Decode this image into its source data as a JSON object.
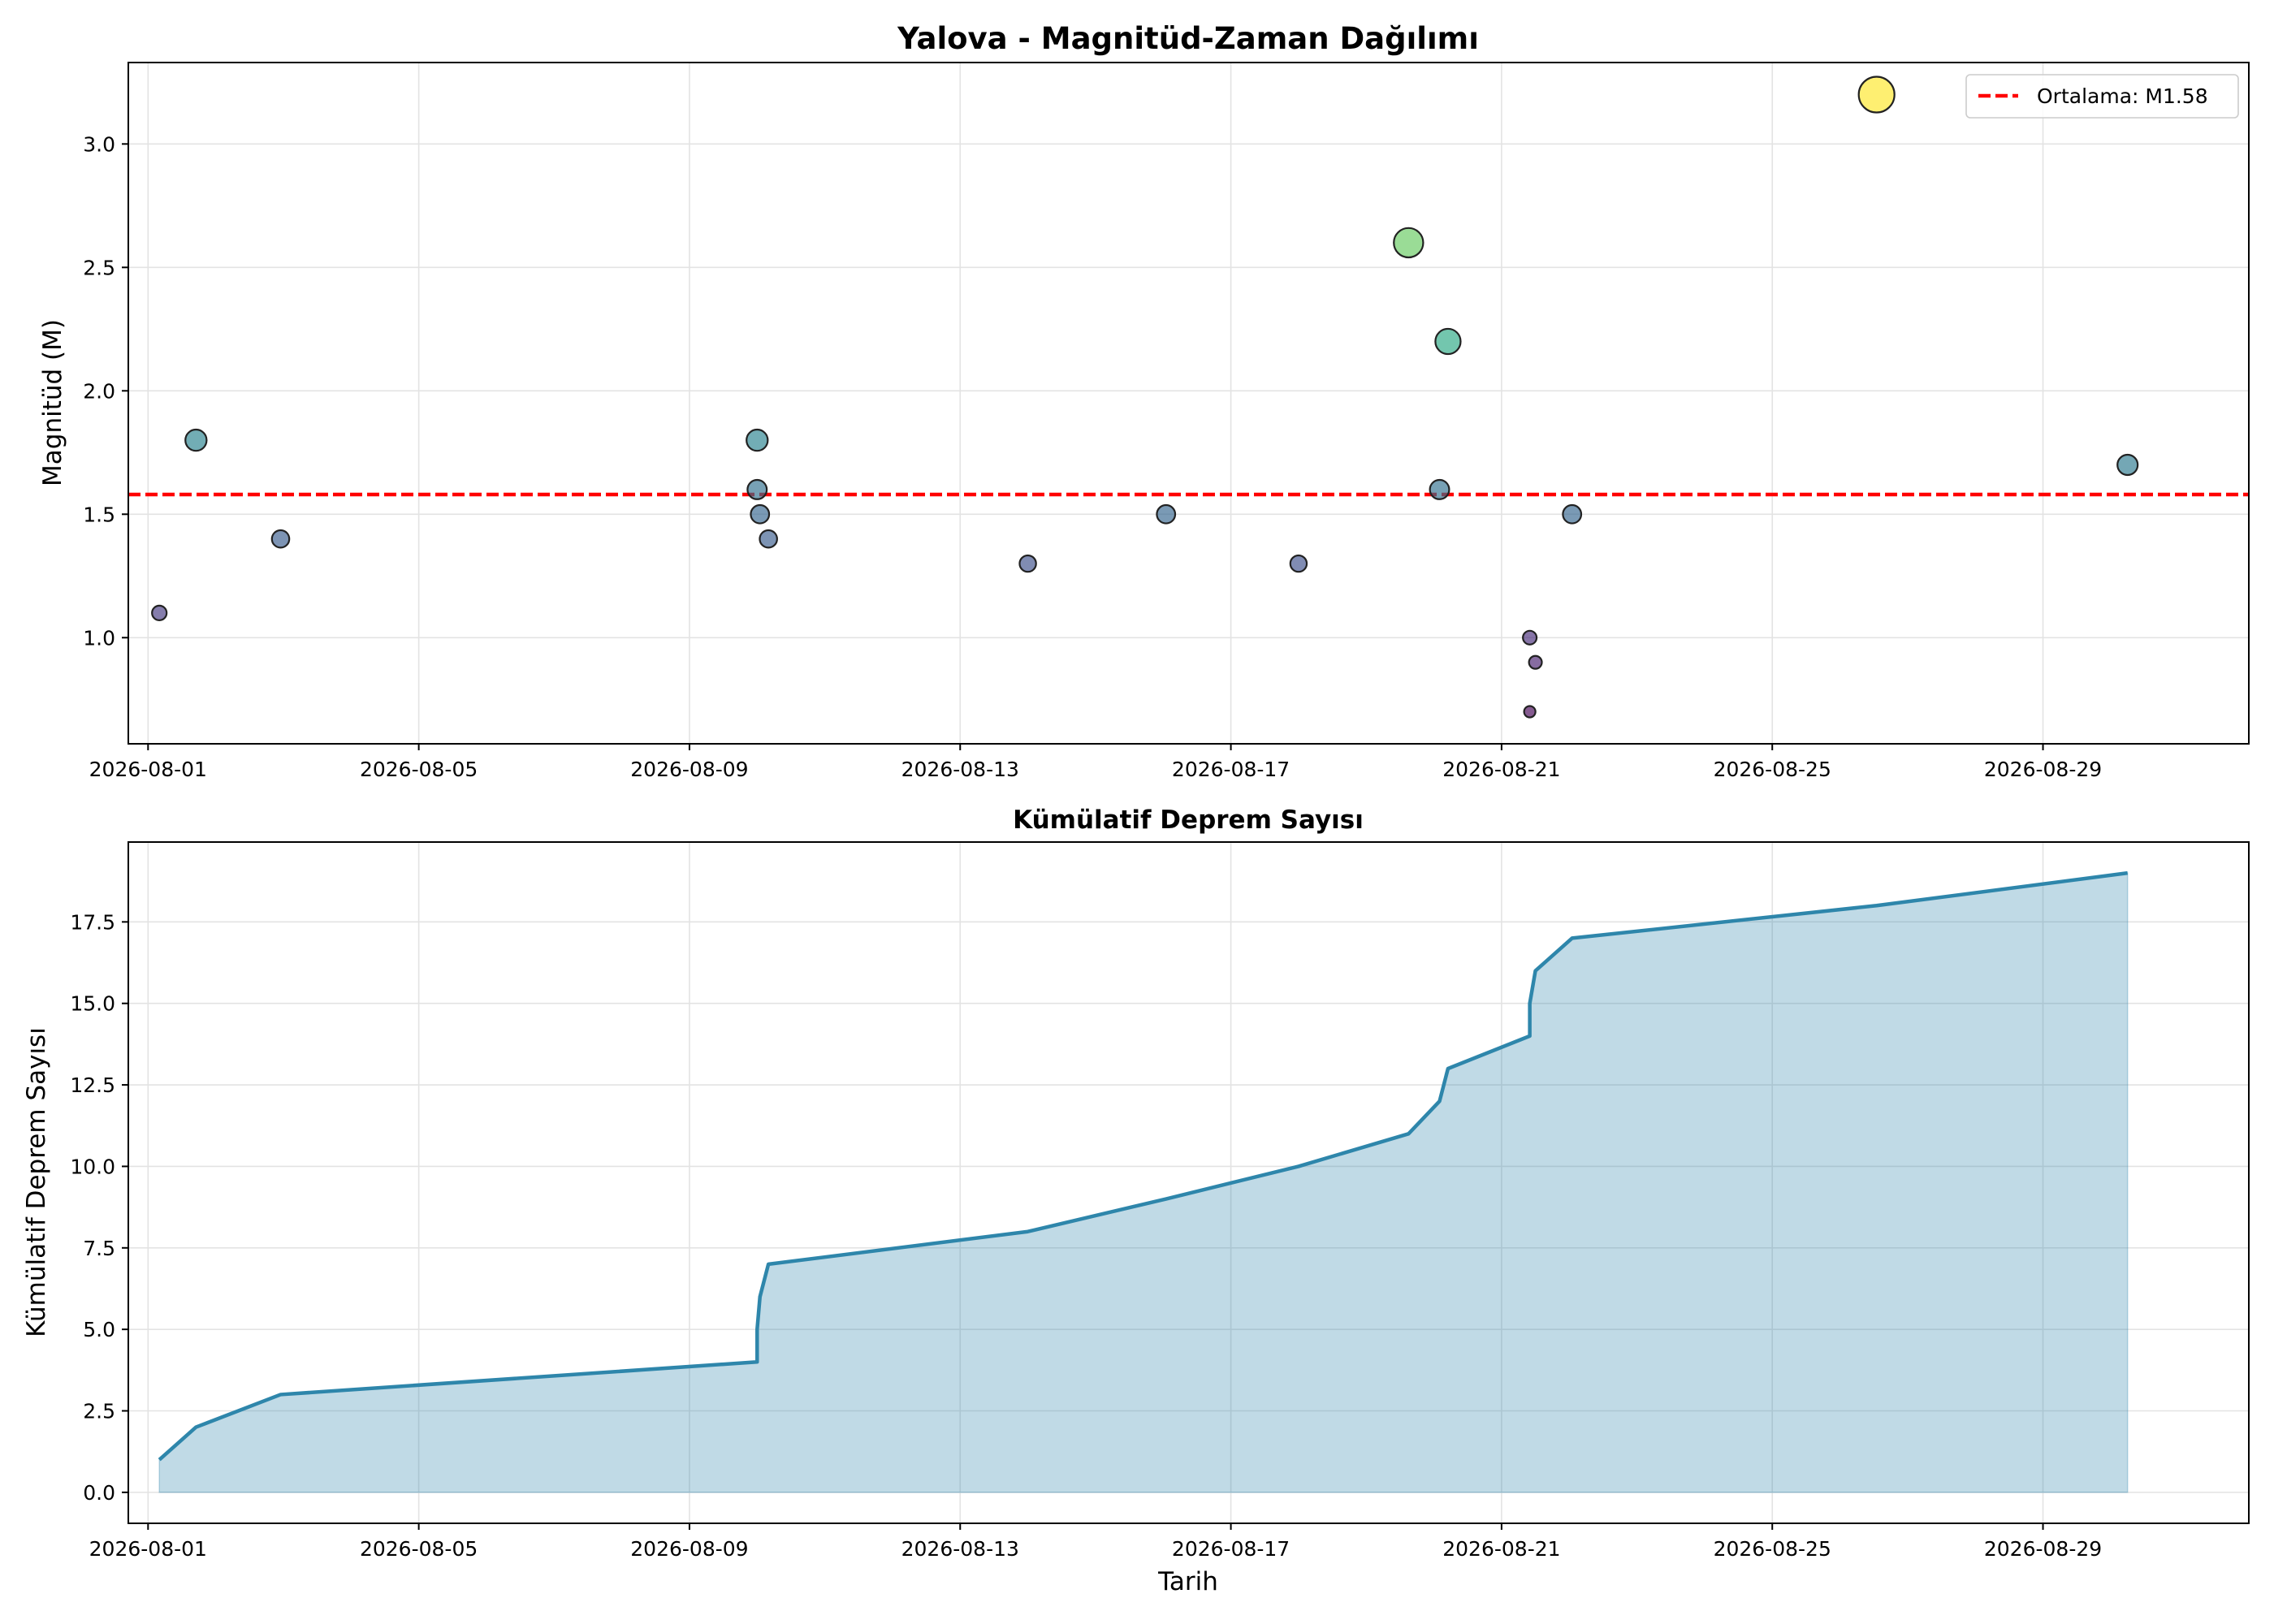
{
  "chart_data": [
    {
      "type": "scatter",
      "title": "Yalova - Magnitüd-Zaman Dağılımı",
      "xlabel": "",
      "ylabel": "Magnitüd (M)",
      "x_ticks": [
        "2026-08-01",
        "2026-08-05",
        "2026-08-09",
        "2026-08-13",
        "2026-08-17",
        "2026-08-21",
        "2026-08-25",
        "2026-08-29"
      ],
      "y_ticks": [
        "1.0",
        "1.5",
        "2.0",
        "2.5",
        "3.0"
      ],
      "xlim": [
        "2026-07-31 17:00",
        "2026-09-01 01:00"
      ],
      "ylim": [
        0.57,
        3.33
      ],
      "grid": true,
      "legend": {
        "position": "upper-right",
        "entries": [
          "Ortalama: M1.58"
        ]
      },
      "mean_line": {
        "label": "Ortalama: M1.58",
        "value": 1.58,
        "color": "#ff0000"
      },
      "colormap": "viridis",
      "points": [
        {
          "x": "2026-08-01 04:00",
          "y": 1.1
        },
        {
          "x": "2026-08-01 17:00",
          "y": 1.8
        },
        {
          "x": "2026-08-02 23:00",
          "y": 1.4
        },
        {
          "x": "2026-08-10 00:00",
          "y": 1.8
        },
        {
          "x": "2026-08-10 00:00",
          "y": 1.6
        },
        {
          "x": "2026-08-10 01:00",
          "y": 1.5
        },
        {
          "x": "2026-08-10 04:00",
          "y": 1.4
        },
        {
          "x": "2026-08-14 00:00",
          "y": 1.3
        },
        {
          "x": "2026-08-16 01:00",
          "y": 1.5
        },
        {
          "x": "2026-08-18 00:00",
          "y": 1.3
        },
        {
          "x": "2026-08-19 15:00",
          "y": 2.6
        },
        {
          "x": "2026-08-20 02:00",
          "y": 1.6
        },
        {
          "x": "2026-08-20 05:00",
          "y": 2.2
        },
        {
          "x": "2026-08-21 10:00",
          "y": 1.0
        },
        {
          "x": "2026-08-21 10:00",
          "y": 0.7
        },
        {
          "x": "2026-08-21 12:00",
          "y": 0.9
        },
        {
          "x": "2026-08-22 01:00",
          "y": 1.5
        },
        {
          "x": "2026-08-26 13:00",
          "y": 3.2
        },
        {
          "x": "2026-08-30 06:00",
          "y": 1.7
        }
      ]
    },
    {
      "type": "area",
      "title": "Kümülatif Deprem Sayısı",
      "xlabel": "Tarih",
      "ylabel": "Kümülatif Deprem Sayısı",
      "x_ticks": [
        "2026-08-01",
        "2026-08-05",
        "2026-08-09",
        "2026-08-13",
        "2026-08-17",
        "2026-08-21",
        "2026-08-25",
        "2026-08-29"
      ],
      "y_ticks": [
        "0.0",
        "2.5",
        "5.0",
        "7.5",
        "10.0",
        "12.5",
        "15.0",
        "17.5"
      ],
      "xlim": [
        "2026-07-31 17:00",
        "2026-09-01 01:00"
      ],
      "ylim": [
        -0.95,
        19.95
      ],
      "grid": true,
      "line_color": "#2e86ab",
      "fill_color": "#2e86ab",
      "series": [
        {
          "x": [
            "2026-08-01 04:00",
            "2026-08-01 17:00",
            "2026-08-02 23:00",
            "2026-08-10 00:00",
            "2026-08-10 00:00",
            "2026-08-10 01:00",
            "2026-08-10 04:00",
            "2026-08-14 00:00",
            "2026-08-16 01:00",
            "2026-08-18 00:00",
            "2026-08-19 15:00",
            "2026-08-20 02:00",
            "2026-08-20 05:00",
            "2026-08-21 10:00",
            "2026-08-21 10:00",
            "2026-08-21 12:00",
            "2026-08-22 01:00",
            "2026-08-26 13:00",
            "2026-08-30 06:00"
          ],
          "values": [
            1,
            2,
            3,
            4,
            5,
            6,
            7,
            8,
            9,
            10,
            11,
            12,
            13,
            14,
            15,
            16,
            17,
            18,
            19
          ]
        }
      ]
    }
  ]
}
